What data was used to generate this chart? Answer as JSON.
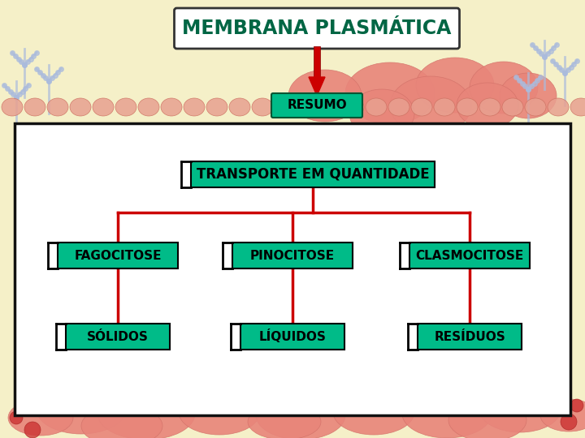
{
  "title": "MEMBRANA PLASMÁTICA",
  "title_color": "#006644",
  "title_bg": "#ffffff",
  "title_border": "#333333",
  "resumo_label": "RESUMO",
  "resumo_bg": "#00bb88",
  "resumo_text_color": "#000000",
  "main_box_bg": "#ffffff",
  "main_box_border": "#111111",
  "transporte_label": "TRANSPORTE EM QUANTIDADE",
  "transporte_bg": "#00bb88",
  "transporte_text_color": "#000000",
  "level2": [
    "FAGOCITOSE",
    "PINOCITOSE",
    "CLASMOCITOSE"
  ],
  "level2_bg": "#00bb88",
  "level3": [
    "SÓLIDOS",
    "LÍQUIDOS",
    "RESÍDUOS"
  ],
  "level3_bg": "#00bb88",
  "connector_color": "#cc0000",
  "bg_top_color": "#f5f0c8",
  "bg_bottom_color": "#f0e8c0",
  "arrow_color": "#cc0000",
  "figw": 7.2,
  "figh": 5.4,
  "dpi": 100
}
